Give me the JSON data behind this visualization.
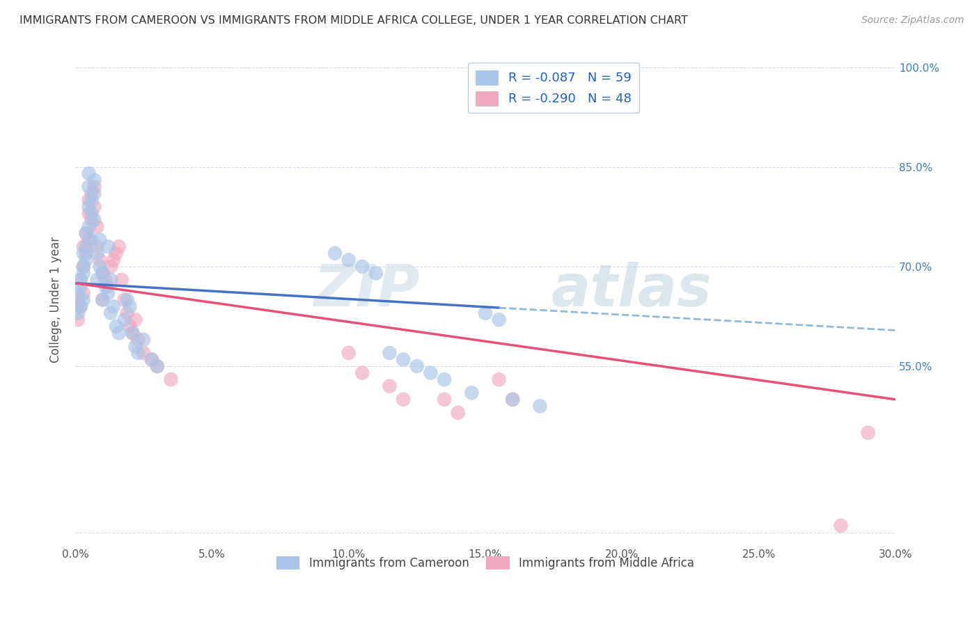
{
  "title": "IMMIGRANTS FROM CAMEROON VS IMMIGRANTS FROM MIDDLE AFRICA COLLEGE, UNDER 1 YEAR CORRELATION CHART",
  "source": "Source: ZipAtlas.com",
  "xlabel": "",
  "ylabel": "College, Under 1 year",
  "xlim": [
    0.0,
    0.3
  ],
  "ylim": [
    0.28,
    1.02
  ],
  "xtick_labels": [
    "0.0%",
    "5.0%",
    "10.0%",
    "15.0%",
    "20.0%",
    "25.0%",
    "30.0%"
  ],
  "xtick_values": [
    0.0,
    0.05,
    0.1,
    0.15,
    0.2,
    0.25,
    0.3
  ],
  "legend_blue_R": "R = -0.087",
  "legend_blue_N": "N = 59",
  "legend_pink_R": "R = -0.290",
  "legend_pink_N": "N = 48",
  "legend_blue_label": "Immigrants from Cameroon",
  "legend_pink_label": "Immigrants from Middle Africa",
  "blue_color": "#a8c4e8",
  "pink_color": "#f0a8be",
  "blue_line_color": "#4472c4",
  "pink_line_color": "#e8507a",
  "dashed_line_color": "#90b8d8",
  "watermark_zip": "ZIP",
  "watermark_atlas": "atlas",
  "blue_scatter_x": [
    0.001,
    0.001,
    0.002,
    0.002,
    0.002,
    0.003,
    0.003,
    0.003,
    0.003,
    0.004,
    0.004,
    0.004,
    0.005,
    0.005,
    0.005,
    0.005,
    0.006,
    0.006,
    0.006,
    0.007,
    0.007,
    0.007,
    0.008,
    0.008,
    0.009,
    0.009,
    0.01,
    0.01,
    0.011,
    0.012,
    0.012,
    0.013,
    0.013,
    0.014,
    0.015,
    0.016,
    0.018,
    0.019,
    0.02,
    0.021,
    0.022,
    0.023,
    0.025,
    0.028,
    0.03,
    0.095,
    0.1,
    0.105,
    0.11,
    0.115,
    0.12,
    0.125,
    0.13,
    0.135,
    0.145,
    0.15,
    0.155,
    0.16,
    0.17
  ],
  "blue_scatter_y": [
    0.66,
    0.63,
    0.67,
    0.64,
    0.68,
    0.69,
    0.65,
    0.72,
    0.7,
    0.73,
    0.75,
    0.71,
    0.76,
    0.79,
    0.82,
    0.84,
    0.78,
    0.8,
    0.74,
    0.81,
    0.83,
    0.77,
    0.72,
    0.68,
    0.74,
    0.7,
    0.69,
    0.65,
    0.67,
    0.66,
    0.73,
    0.68,
    0.63,
    0.64,
    0.61,
    0.6,
    0.62,
    0.65,
    0.64,
    0.6,
    0.58,
    0.57,
    0.59,
    0.56,
    0.55,
    0.72,
    0.71,
    0.7,
    0.69,
    0.57,
    0.56,
    0.55,
    0.54,
    0.53,
    0.51,
    0.63,
    0.62,
    0.5,
    0.49
  ],
  "pink_scatter_x": [
    0.001,
    0.001,
    0.002,
    0.002,
    0.003,
    0.003,
    0.003,
    0.004,
    0.004,
    0.005,
    0.005,
    0.005,
    0.006,
    0.006,
    0.007,
    0.007,
    0.008,
    0.008,
    0.009,
    0.01,
    0.01,
    0.011,
    0.012,
    0.013,
    0.014,
    0.015,
    0.016,
    0.017,
    0.018,
    0.019,
    0.02,
    0.021,
    0.022,
    0.023,
    0.025,
    0.028,
    0.03,
    0.035,
    0.1,
    0.105,
    0.115,
    0.12,
    0.135,
    0.14,
    0.155,
    0.16,
    0.28,
    0.29
  ],
  "pink_scatter_y": [
    0.65,
    0.62,
    0.64,
    0.68,
    0.66,
    0.7,
    0.73,
    0.72,
    0.75,
    0.74,
    0.78,
    0.8,
    0.77,
    0.81,
    0.79,
    0.82,
    0.76,
    0.73,
    0.71,
    0.69,
    0.65,
    0.68,
    0.67,
    0.7,
    0.71,
    0.72,
    0.73,
    0.68,
    0.65,
    0.63,
    0.61,
    0.6,
    0.62,
    0.59,
    0.57,
    0.56,
    0.55,
    0.53,
    0.57,
    0.54,
    0.52,
    0.5,
    0.5,
    0.48,
    0.53,
    0.5,
    0.31,
    0.45
  ],
  "blue_trend_x": [
    0.0,
    0.155
  ],
  "blue_trend_y": [
    0.675,
    0.638
  ],
  "dashed_trend_x": [
    0.155,
    0.3
  ],
  "dashed_trend_y": [
    0.638,
    0.604
  ],
  "pink_trend_x": [
    0.0,
    0.3
  ],
  "pink_trend_y": [
    0.675,
    0.5
  ],
  "background_color": "#ffffff",
  "grid_color": "#d0d8e8"
}
